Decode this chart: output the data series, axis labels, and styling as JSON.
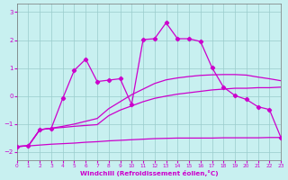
{
  "xlabel": "Windchill (Refroidissement éolien,°C)",
  "xlim": [
    0,
    23
  ],
  "ylim": [
    -2.3,
    3.3
  ],
  "yticks": [
    -2,
    -1,
    0,
    1,
    2,
    3
  ],
  "xticks": [
    0,
    1,
    2,
    3,
    4,
    5,
    6,
    7,
    8,
    9,
    10,
    11,
    12,
    13,
    14,
    15,
    16,
    17,
    18,
    19,
    20,
    21,
    22,
    23
  ],
  "bg_color": "#c8f0f0",
  "line_color": "#cc00cc",
  "grid_color": "#99cccc",
  "curve_flat": {
    "x": [
      0,
      1,
      2,
      3,
      4,
      5,
      6,
      7,
      8,
      9,
      10,
      11,
      12,
      13,
      14,
      15,
      16,
      17,
      18,
      19,
      20,
      21,
      22,
      23
    ],
    "y": [
      -1.8,
      -1.78,
      -1.75,
      -1.72,
      -1.7,
      -1.68,
      -1.65,
      -1.63,
      -1.6,
      -1.58,
      -1.56,
      -1.54,
      -1.52,
      -1.51,
      -1.5,
      -1.5,
      -1.5,
      -1.5,
      -1.49,
      -1.49,
      -1.49,
      -1.49,
      -1.48,
      -1.48
    ]
  },
  "curve_low": {
    "x": [
      0,
      1,
      2,
      3,
      4,
      5,
      6,
      7,
      8,
      9,
      10,
      11,
      12,
      13,
      14,
      15,
      16,
      17,
      18,
      19,
      20,
      21,
      22,
      23
    ],
    "y": [
      -1.8,
      -1.78,
      -1.2,
      -1.15,
      -1.12,
      -1.08,
      -1.05,
      -1.02,
      -0.7,
      -0.5,
      -0.35,
      -0.2,
      -0.08,
      0.0,
      0.07,
      0.12,
      0.17,
      0.22,
      0.25,
      0.28,
      0.28,
      0.3,
      0.3,
      0.32
    ]
  },
  "curve_mid": {
    "x": [
      0,
      1,
      2,
      3,
      4,
      5,
      6,
      7,
      8,
      9,
      10,
      11,
      12,
      13,
      14,
      15,
      16,
      17,
      18,
      19,
      20,
      21,
      22,
      23
    ],
    "y": [
      -1.8,
      -1.78,
      -1.2,
      -1.15,
      -1.08,
      -1.0,
      -0.9,
      -0.8,
      -0.45,
      -0.2,
      0.05,
      0.25,
      0.45,
      0.58,
      0.65,
      0.7,
      0.74,
      0.76,
      0.77,
      0.77,
      0.75,
      0.68,
      0.62,
      0.55
    ]
  },
  "curve_top": {
    "x": [
      0,
      1,
      2,
      3,
      4,
      5,
      6,
      7,
      8,
      9,
      10,
      11,
      12,
      13,
      14,
      15,
      16,
      17,
      18,
      19,
      20,
      21,
      22,
      23
    ],
    "y": [
      -1.8,
      -1.78,
      -1.2,
      -1.15,
      -0.08,
      0.92,
      1.32,
      0.52,
      0.57,
      0.62,
      -0.3,
      2.02,
      2.05,
      2.62,
      2.05,
      2.05,
      1.95,
      1.02,
      0.32,
      0.02,
      -0.12,
      -0.38,
      -0.48,
      -1.48
    ]
  }
}
